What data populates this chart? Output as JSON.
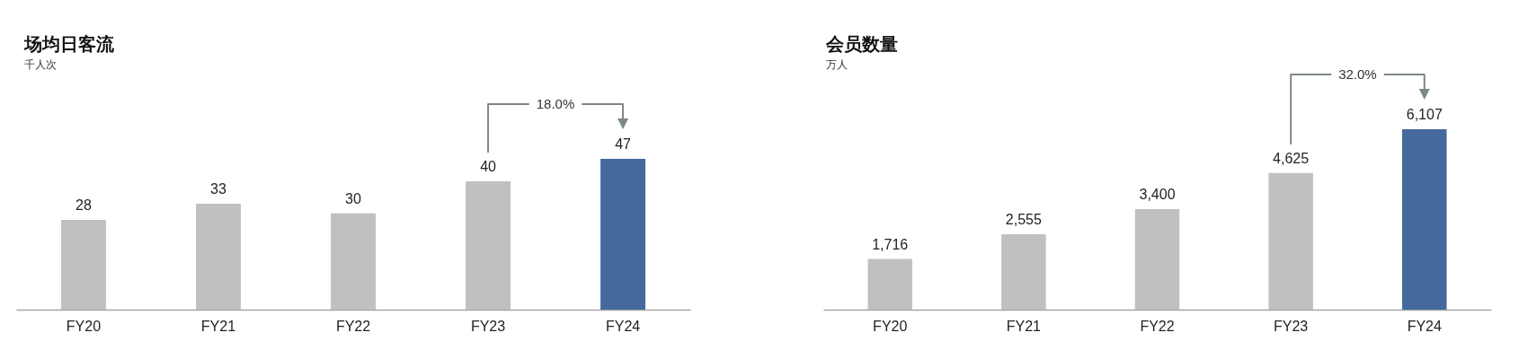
{
  "chart_data": [
    {
      "type": "bar",
      "title": "场均日客流",
      "subtitle": "千人次",
      "categories": [
        "FY20",
        "FY21",
        "FY22",
        "FY23",
        "FY24"
      ],
      "values": [
        28,
        33,
        30,
        40,
        47
      ],
      "colors": [
        "#c0c0c0",
        "#c0c0c0",
        "#c0c0c0",
        "#c0c0c0",
        "#45699a"
      ],
      "data_labels": true,
      "annotations": [
        "18.0%"
      ]
    },
    {
      "type": "bar",
      "title": "会员数量",
      "subtitle": "万人",
      "categories": [
        "FY20",
        "FY21",
        "FY22",
        "FY23",
        "FY24"
      ],
      "values": [
        1716,
        2555,
        3400,
        4625,
        6107
      ],
      "value_labels": [
        "1,716",
        "2,555",
        "3,400",
        "4,625",
        "6,107"
      ],
      "colors": [
        "#c0c0c0",
        "#c0c0c0",
        "#c0c0c0",
        "#c0c0c0",
        "#45699a"
      ],
      "annotations": [
        "32.0%"
      ]
    }
  ]
}
